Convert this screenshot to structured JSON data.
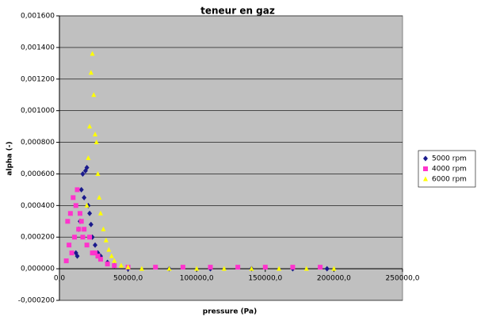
{
  "chart_data": {
    "type": "scatter",
    "title": "teneur en gaz",
    "x_label": "pressure (Pa)",
    "y_label": "alpha (-)",
    "xlim": [
      0,
      250000
    ],
    "ylim": [
      -0.0002,
      0.0016
    ],
    "xticks": [
      {
        "value": 0,
        "label": "0,0"
      },
      {
        "value": 50000,
        "label": "50000,0"
      },
      {
        "value": 100000,
        "label": "100000,0"
      },
      {
        "value": 150000,
        "label": "150000,0"
      },
      {
        "value": 200000,
        "label": "200000,0"
      },
      {
        "value": 250000,
        "label": "250000,0"
      }
    ],
    "yticks": [
      {
        "value": -0.0002,
        "label": "-0,000200"
      },
      {
        "value": 0,
        "label": "0,000000"
      },
      {
        "value": 0.0002,
        "label": "0,000200"
      },
      {
        "value": 0.0004,
        "label": "0,000400"
      },
      {
        "value": 0.0006,
        "label": "0,000600"
      },
      {
        "value": 0.0008,
        "label": "0,000800"
      },
      {
        "value": 0.001,
        "label": "0,001000"
      },
      {
        "value": 0.0012,
        "label": "0,001200"
      },
      {
        "value": 0.0014,
        "label": "0,001400"
      },
      {
        "value": 0.0016,
        "label": "0,001600"
      }
    ],
    "grid": true,
    "legend": "right",
    "series": [
      {
        "name": "5000 rpm",
        "color": "#1a1a8c",
        "marker": "diamond",
        "x": [
          12000,
          13000,
          14000,
          15000,
          16000,
          17000,
          18000,
          19000,
          20000,
          21000,
          22000,
          23000,
          24000,
          26000,
          28000,
          30000,
          35000,
          40000,
          50000,
          80000,
          110000,
          140000,
          170000,
          195000
        ],
        "values": [
          0.0001,
          8e-05,
          0.00025,
          0.0003,
          0.0005,
          0.0006,
          0.00045,
          0.00062,
          0.00064,
          0.0004,
          0.00035,
          0.00028,
          0.0002,
          0.00015,
          0.0001,
          8e-05,
          4e-05,
          2e-05,
          0,
          0,
          0,
          0,
          0,
          0
        ]
      },
      {
        "name": "4000 rpm",
        "color": "#ff33cc",
        "marker": "square",
        "x": [
          5000,
          6000,
          7000,
          8000,
          9000,
          10000,
          11000,
          12000,
          13000,
          14000,
          15000,
          16000,
          17000,
          18000,
          20000,
          22000,
          24000,
          26000,
          28000,
          30000,
          35000,
          40000,
          50000,
          70000,
          90000,
          110000,
          130000,
          150000,
          170000,
          190000
        ],
        "values": [
          5e-05,
          0.0003,
          0.00015,
          0.00035,
          0.0001,
          0.00045,
          0.0002,
          0.0004,
          0.0005,
          0.00025,
          0.00035,
          0.0003,
          0.0002,
          0.00025,
          0.00015,
          0.0002,
          0.0001,
          0.0001,
          8e-05,
          6e-05,
          3e-05,
          2e-05,
          1e-05,
          1e-05,
          1e-05,
          1e-05,
          1e-05,
          1e-05,
          1e-05,
          1e-05
        ]
      },
      {
        "name": "6000 rpm",
        "color": "#ffff00",
        "marker": "triangle",
        "x": [
          20000,
          21000,
          22000,
          23000,
          24000,
          25000,
          26000,
          27000,
          28000,
          29000,
          30000,
          32000,
          34000,
          36000,
          38000,
          40000,
          45000,
          50000,
          60000,
          80000,
          100000,
          120000,
          140000,
          160000,
          180000,
          200000
        ],
        "values": [
          0.0004,
          0.0007,
          0.0009,
          0.00124,
          0.00136,
          0.0011,
          0.00085,
          0.0008,
          0.0006,
          0.00045,
          0.00035,
          0.00025,
          0.00018,
          0.00012,
          8e-05,
          5e-05,
          2e-05,
          1e-05,
          0,
          0,
          0,
          0,
          0,
          0,
          0,
          0
        ]
      }
    ]
  }
}
